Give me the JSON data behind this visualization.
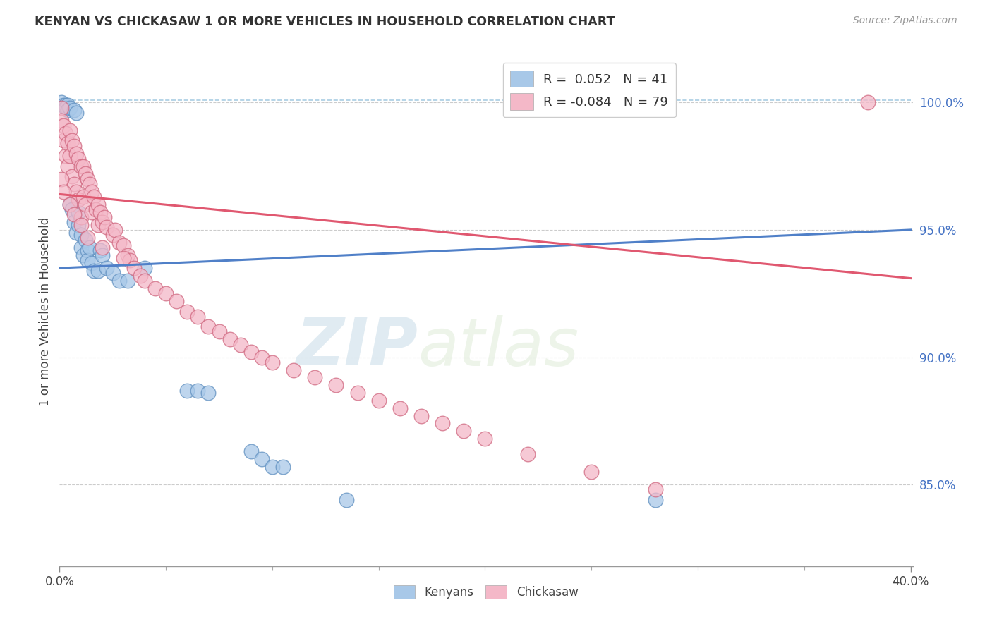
{
  "title": "KENYAN VS CHICKASAW 1 OR MORE VEHICLES IN HOUSEHOLD CORRELATION CHART",
  "source_text": "Source: ZipAtlas.com",
  "ylabel": "1 or more Vehicles in Household",
  "ytick_labels": [
    "85.0%",
    "90.0%",
    "95.0%",
    "100.0%"
  ],
  "ytick_values": [
    0.85,
    0.9,
    0.95,
    1.0
  ],
  "xmin": 0.0,
  "xmax": 0.4,
  "ymin": 0.818,
  "ymax": 1.018,
  "legend_label1": "Kenyans",
  "legend_label2": "Chickasaw",
  "blue_color": "#a8c8e8",
  "pink_color": "#f4b8c8",
  "blue_edge_color": "#6090c0",
  "pink_edge_color": "#d06880",
  "blue_line_color": "#5080c8",
  "pink_line_color": "#e05870",
  "dashed_line_color": "#a0c8e0",
  "watermark_zip": "ZIP",
  "watermark_atlas": "atlas",
  "blue_R": 0.052,
  "pink_R": -0.084,
  "blue_N": 41,
  "pink_N": 79,
  "blue_line_x0": 0.0,
  "blue_line_y0": 0.935,
  "blue_line_x1": 0.4,
  "blue_line_y1": 0.95,
  "pink_line_x0": 0.0,
  "pink_line_y0": 0.964,
  "pink_line_x1": 0.4,
  "pink_line_y1": 0.931,
  "dashed_line_y": 1.001,
  "xtick_positions": [
    0.0,
    0.05,
    0.1,
    0.15,
    0.2,
    0.25,
    0.3,
    0.35,
    0.4
  ],
  "xtick_major": [
    0.0,
    0.4
  ],
  "blue_scatter_x": [
    0.001,
    0.002,
    0.003,
    0.003,
    0.004,
    0.004,
    0.005,
    0.005,
    0.006,
    0.007,
    0.007,
    0.008,
    0.008,
    0.009,
    0.009,
    0.01,
    0.01,
    0.011,
    0.012,
    0.013,
    0.013,
    0.014,
    0.015,
    0.016,
    0.018,
    0.019,
    0.02,
    0.022,
    0.025,
    0.028,
    0.032,
    0.04,
    0.06,
    0.065,
    0.07,
    0.09,
    0.095,
    0.1,
    0.105,
    0.135,
    0.28
  ],
  "blue_scatter_y": [
    1.0,
    0.999,
    0.999,
    0.998,
    0.999,
    0.997,
    0.998,
    0.96,
    0.958,
    0.997,
    0.953,
    0.996,
    0.949,
    0.957,
    0.952,
    0.948,
    0.943,
    0.94,
    0.946,
    0.942,
    0.938,
    0.943,
    0.937,
    0.934,
    0.934,
    0.942,
    0.94,
    0.935,
    0.933,
    0.93,
    0.93,
    0.935,
    0.887,
    0.887,
    0.886,
    0.863,
    0.86,
    0.857,
    0.857,
    0.844,
    0.844
  ],
  "pink_scatter_x": [
    0.001,
    0.001,
    0.002,
    0.002,
    0.003,
    0.003,
    0.004,
    0.004,
    0.005,
    0.005,
    0.006,
    0.006,
    0.007,
    0.007,
    0.008,
    0.008,
    0.009,
    0.009,
    0.01,
    0.01,
    0.011,
    0.011,
    0.012,
    0.012,
    0.013,
    0.014,
    0.015,
    0.015,
    0.016,
    0.017,
    0.018,
    0.018,
    0.019,
    0.02,
    0.021,
    0.022,
    0.025,
    0.026,
    0.028,
    0.03,
    0.032,
    0.033,
    0.035,
    0.038,
    0.04,
    0.045,
    0.05,
    0.055,
    0.06,
    0.065,
    0.07,
    0.075,
    0.08,
    0.085,
    0.09,
    0.095,
    0.1,
    0.11,
    0.12,
    0.13,
    0.14,
    0.15,
    0.16,
    0.17,
    0.18,
    0.19,
    0.2,
    0.22,
    0.25,
    0.28,
    0.001,
    0.002,
    0.005,
    0.007,
    0.01,
    0.013,
    0.02,
    0.03,
    0.38
  ],
  "pink_scatter_y": [
    0.998,
    0.993,
    0.991,
    0.985,
    0.988,
    0.979,
    0.984,
    0.975,
    0.989,
    0.979,
    0.985,
    0.971,
    0.983,
    0.968,
    0.98,
    0.965,
    0.978,
    0.962,
    0.975,
    0.955,
    0.975,
    0.963,
    0.972,
    0.96,
    0.97,
    0.968,
    0.965,
    0.957,
    0.963,
    0.958,
    0.96,
    0.952,
    0.957,
    0.953,
    0.955,
    0.951,
    0.948,
    0.95,
    0.945,
    0.944,
    0.94,
    0.938,
    0.935,
    0.932,
    0.93,
    0.927,
    0.925,
    0.922,
    0.918,
    0.916,
    0.912,
    0.91,
    0.907,
    0.905,
    0.902,
    0.9,
    0.898,
    0.895,
    0.892,
    0.889,
    0.886,
    0.883,
    0.88,
    0.877,
    0.874,
    0.871,
    0.868,
    0.862,
    0.855,
    0.848,
    0.97,
    0.965,
    0.96,
    0.956,
    0.952,
    0.947,
    0.943,
    0.939,
    1.0
  ]
}
